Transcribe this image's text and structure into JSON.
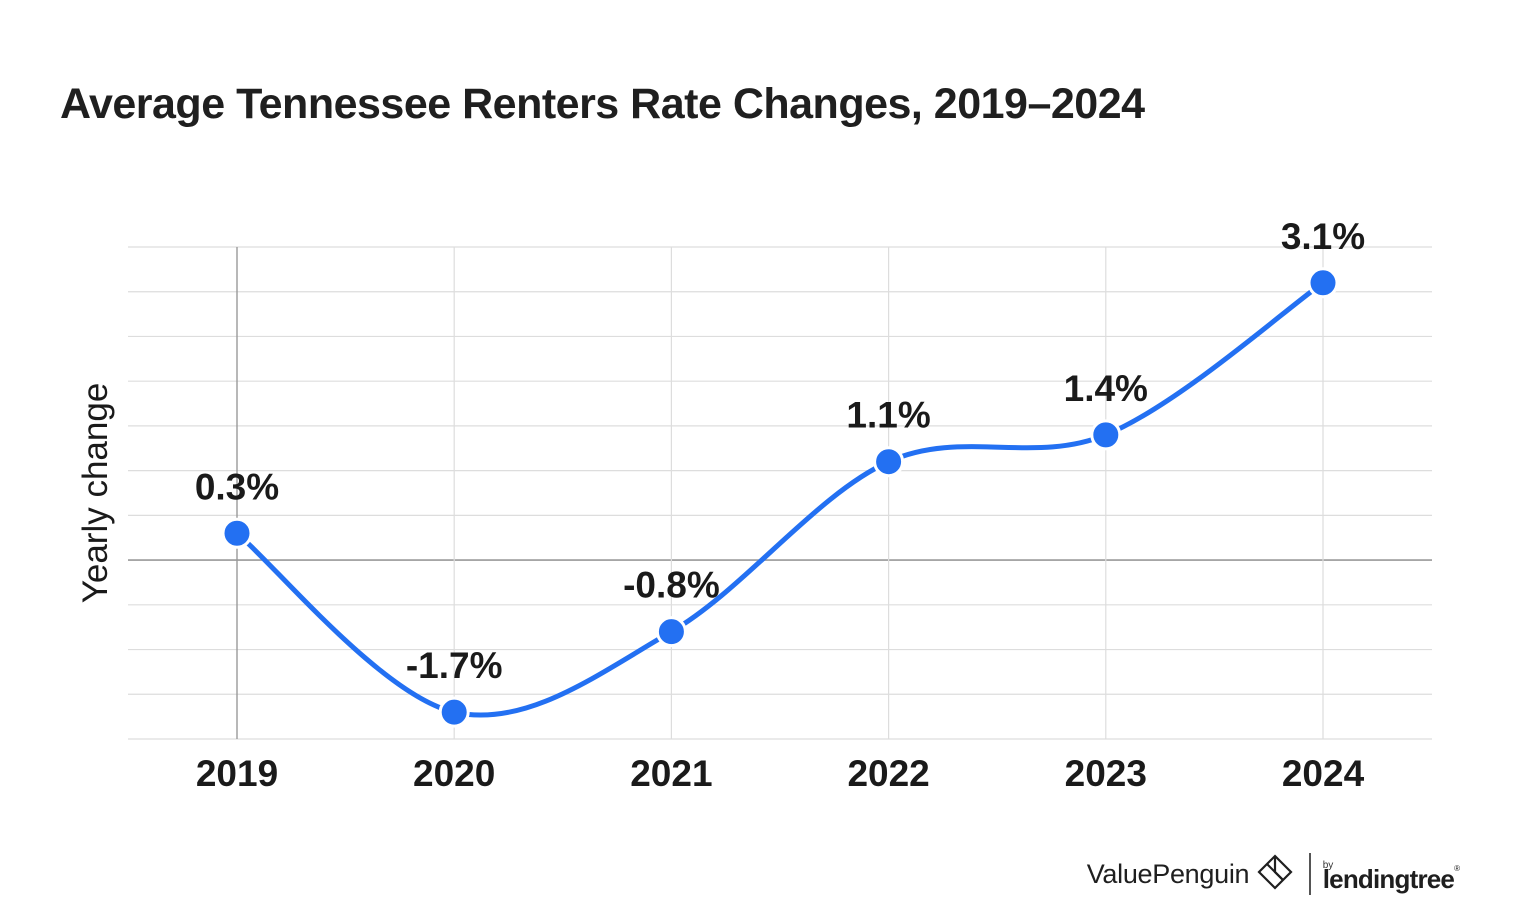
{
  "title": "Average Tennessee Renters Rate Changes, 2019–2024",
  "branding": {
    "valuepenguin": "ValuePenguin",
    "by": "by",
    "lendingtree": "lendingtree",
    "registered": "®"
  },
  "colors": {
    "line": "#2370f2",
    "grid": "#dddddd",
    "baseline": "#999999",
    "text": "#1a1a1a"
  },
  "chart_data": {
    "type": "line",
    "title": "Average Tennessee Renters Rate Changes, 2019–2024",
    "xlabel": "",
    "ylabel": "Yearly change",
    "categories": [
      "2019",
      "2020",
      "2021",
      "2022",
      "2023",
      "2024"
    ],
    "values": [
      0.3,
      -1.7,
      -0.8,
      1.1,
      1.4,
      3.1
    ],
    "data_labels": [
      "0.3%",
      "-1.7%",
      "-0.8%",
      "1.1%",
      "1.4%",
      "3.1%"
    ],
    "ylim": [
      -2.0,
      3.5
    ],
    "y_gridline_step": 0.5,
    "y_tick_labels_shown": false,
    "grid": true,
    "smooth": true
  }
}
